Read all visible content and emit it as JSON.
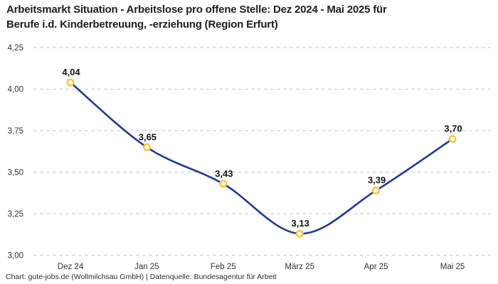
{
  "header": {
    "title_line1": "Arbeitsmarkt Situation - Arbeitslose pro offene Stelle: Dez 2024 - Mai 2025 für",
    "title_line2": "Berufe i.d. Kinderbetreuung, -erziehung (Region Erfurt)"
  },
  "footer": {
    "credit": "Chart: gute-jobs.de (Wollmilchsau GmbH) | Datenquelle: Bundesagentur für Arbeit"
  },
  "colors": {
    "line": "#1e3a98",
    "marker_ring": "#fdc434",
    "marker_fill": "#ffffff",
    "grid": "#c9c9c9",
    "value_label": "#141414",
    "tick_label": "#333333"
  },
  "chart_data": {
    "type": "line",
    "title": "Arbeitsmarkt Situation - Arbeitslose pro offene Stelle: Dez 2024 - Mai 2025 für Berufe i.d. Kinderbetreuung, -erziehung (Region Erfurt)",
    "categories": [
      "Dez 24",
      "Jan 25",
      "Feb 25",
      "März 25",
      "Apr 25",
      "Mai 25"
    ],
    "values": [
      4.04,
      3.65,
      3.43,
      3.13,
      3.39,
      3.7
    ],
    "point_labels": [
      "4,04",
      "3,65",
      "3,43",
      "3,13",
      "3,39",
      "3,70"
    ],
    "yticks": [
      {
        "value": 3.0,
        "label": "3,00"
      },
      {
        "value": 3.25,
        "label": "3,25"
      },
      {
        "value": 3.5,
        "label": "3,50"
      },
      {
        "value": 3.75,
        "label": "3,75"
      },
      {
        "value": 4.0,
        "label": "4,00"
      },
      {
        "value": 4.25,
        "label": "4,25"
      }
    ],
    "ylim": [
      3.0,
      4.25
    ],
    "xlabel": "",
    "ylabel": "",
    "grid": "dashed-horizontal",
    "legend": "none",
    "line_smooth": true,
    "marker": "open-circle"
  }
}
